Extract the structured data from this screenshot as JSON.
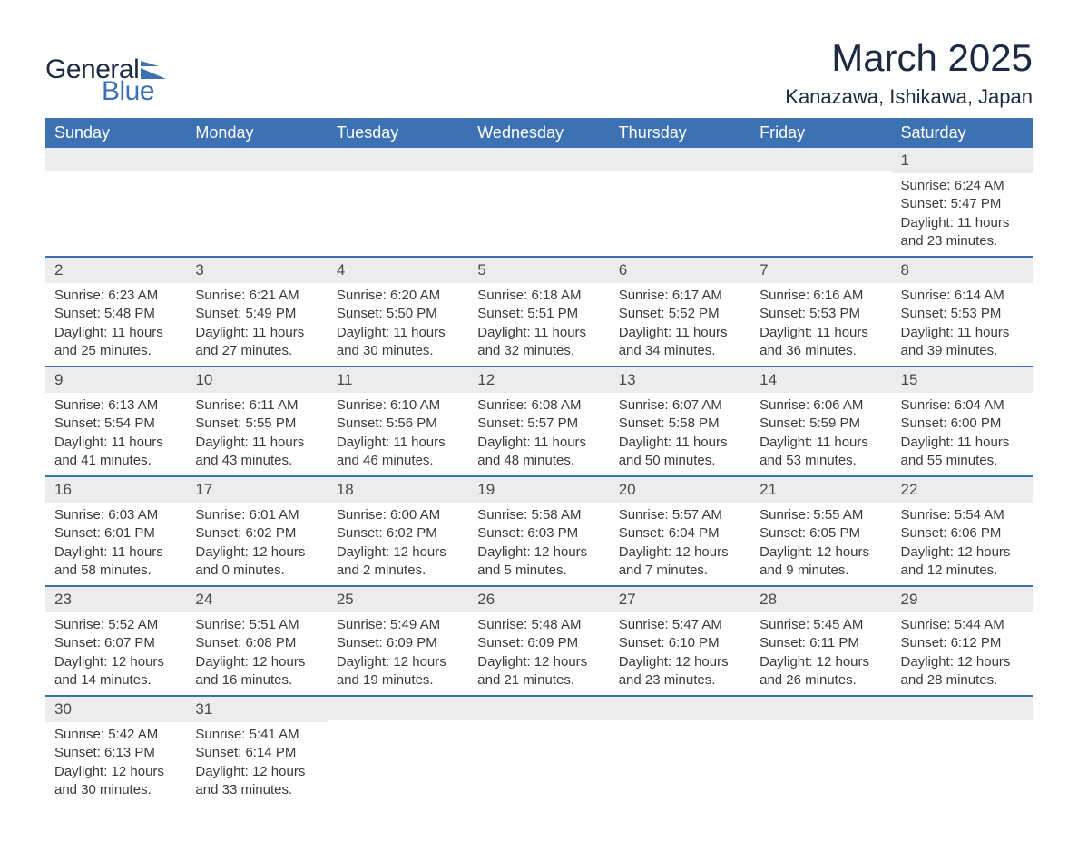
{
  "brand": {
    "word1": "General",
    "word2": "Blue",
    "flag_color": "#3c72b4",
    "text_dark": "#1c2b42"
  },
  "title": "March 2025",
  "location": "Kanazawa, Ishikawa, Japan",
  "calendar": {
    "header_bg": "#3c72b4",
    "header_text": "#ffffff",
    "daynum_bg": "#ececec",
    "row_border": "#3c72b4",
    "text_color": "#3a3a3a",
    "days_of_week": [
      "Sunday",
      "Monday",
      "Tuesday",
      "Wednesday",
      "Thursday",
      "Friday",
      "Saturday"
    ],
    "weeks": [
      [
        {
          "n": "",
          "sunrise": "",
          "sunset": "",
          "daylight": ""
        },
        {
          "n": "",
          "sunrise": "",
          "sunset": "",
          "daylight": ""
        },
        {
          "n": "",
          "sunrise": "",
          "sunset": "",
          "daylight": ""
        },
        {
          "n": "",
          "sunrise": "",
          "sunset": "",
          "daylight": ""
        },
        {
          "n": "",
          "sunrise": "",
          "sunset": "",
          "daylight": ""
        },
        {
          "n": "",
          "sunrise": "",
          "sunset": "",
          "daylight": ""
        },
        {
          "n": "1",
          "sunrise": "Sunrise: 6:24 AM",
          "sunset": "Sunset: 5:47 PM",
          "daylight": "Daylight: 11 hours and 23 minutes."
        }
      ],
      [
        {
          "n": "2",
          "sunrise": "Sunrise: 6:23 AM",
          "sunset": "Sunset: 5:48 PM",
          "daylight": "Daylight: 11 hours and 25 minutes."
        },
        {
          "n": "3",
          "sunrise": "Sunrise: 6:21 AM",
          "sunset": "Sunset: 5:49 PM",
          "daylight": "Daylight: 11 hours and 27 minutes."
        },
        {
          "n": "4",
          "sunrise": "Sunrise: 6:20 AM",
          "sunset": "Sunset: 5:50 PM",
          "daylight": "Daylight: 11 hours and 30 minutes."
        },
        {
          "n": "5",
          "sunrise": "Sunrise: 6:18 AM",
          "sunset": "Sunset: 5:51 PM",
          "daylight": "Daylight: 11 hours and 32 minutes."
        },
        {
          "n": "6",
          "sunrise": "Sunrise: 6:17 AM",
          "sunset": "Sunset: 5:52 PM",
          "daylight": "Daylight: 11 hours and 34 minutes."
        },
        {
          "n": "7",
          "sunrise": "Sunrise: 6:16 AM",
          "sunset": "Sunset: 5:53 PM",
          "daylight": "Daylight: 11 hours and 36 minutes."
        },
        {
          "n": "8",
          "sunrise": "Sunrise: 6:14 AM",
          "sunset": "Sunset: 5:53 PM",
          "daylight": "Daylight: 11 hours and 39 minutes."
        }
      ],
      [
        {
          "n": "9",
          "sunrise": "Sunrise: 6:13 AM",
          "sunset": "Sunset: 5:54 PM",
          "daylight": "Daylight: 11 hours and 41 minutes."
        },
        {
          "n": "10",
          "sunrise": "Sunrise: 6:11 AM",
          "sunset": "Sunset: 5:55 PM",
          "daylight": "Daylight: 11 hours and 43 minutes."
        },
        {
          "n": "11",
          "sunrise": "Sunrise: 6:10 AM",
          "sunset": "Sunset: 5:56 PM",
          "daylight": "Daylight: 11 hours and 46 minutes."
        },
        {
          "n": "12",
          "sunrise": "Sunrise: 6:08 AM",
          "sunset": "Sunset: 5:57 PM",
          "daylight": "Daylight: 11 hours and 48 minutes."
        },
        {
          "n": "13",
          "sunrise": "Sunrise: 6:07 AM",
          "sunset": "Sunset: 5:58 PM",
          "daylight": "Daylight: 11 hours and 50 minutes."
        },
        {
          "n": "14",
          "sunrise": "Sunrise: 6:06 AM",
          "sunset": "Sunset: 5:59 PM",
          "daylight": "Daylight: 11 hours and 53 minutes."
        },
        {
          "n": "15",
          "sunrise": "Sunrise: 6:04 AM",
          "sunset": "Sunset: 6:00 PM",
          "daylight": "Daylight: 11 hours and 55 minutes."
        }
      ],
      [
        {
          "n": "16",
          "sunrise": "Sunrise: 6:03 AM",
          "sunset": "Sunset: 6:01 PM",
          "daylight": "Daylight: 11 hours and 58 minutes."
        },
        {
          "n": "17",
          "sunrise": "Sunrise: 6:01 AM",
          "sunset": "Sunset: 6:02 PM",
          "daylight": "Daylight: 12 hours and 0 minutes."
        },
        {
          "n": "18",
          "sunrise": "Sunrise: 6:00 AM",
          "sunset": "Sunset: 6:02 PM",
          "daylight": "Daylight: 12 hours and 2 minutes."
        },
        {
          "n": "19",
          "sunrise": "Sunrise: 5:58 AM",
          "sunset": "Sunset: 6:03 PM",
          "daylight": "Daylight: 12 hours and 5 minutes."
        },
        {
          "n": "20",
          "sunrise": "Sunrise: 5:57 AM",
          "sunset": "Sunset: 6:04 PM",
          "daylight": "Daylight: 12 hours and 7 minutes."
        },
        {
          "n": "21",
          "sunrise": "Sunrise: 5:55 AM",
          "sunset": "Sunset: 6:05 PM",
          "daylight": "Daylight: 12 hours and 9 minutes."
        },
        {
          "n": "22",
          "sunrise": "Sunrise: 5:54 AM",
          "sunset": "Sunset: 6:06 PM",
          "daylight": "Daylight: 12 hours and 12 minutes."
        }
      ],
      [
        {
          "n": "23",
          "sunrise": "Sunrise: 5:52 AM",
          "sunset": "Sunset: 6:07 PM",
          "daylight": "Daylight: 12 hours and 14 minutes."
        },
        {
          "n": "24",
          "sunrise": "Sunrise: 5:51 AM",
          "sunset": "Sunset: 6:08 PM",
          "daylight": "Daylight: 12 hours and 16 minutes."
        },
        {
          "n": "25",
          "sunrise": "Sunrise: 5:49 AM",
          "sunset": "Sunset: 6:09 PM",
          "daylight": "Daylight: 12 hours and 19 minutes."
        },
        {
          "n": "26",
          "sunrise": "Sunrise: 5:48 AM",
          "sunset": "Sunset: 6:09 PM",
          "daylight": "Daylight: 12 hours and 21 minutes."
        },
        {
          "n": "27",
          "sunrise": "Sunrise: 5:47 AM",
          "sunset": "Sunset: 6:10 PM",
          "daylight": "Daylight: 12 hours and 23 minutes."
        },
        {
          "n": "28",
          "sunrise": "Sunrise: 5:45 AM",
          "sunset": "Sunset: 6:11 PM",
          "daylight": "Daylight: 12 hours and 26 minutes."
        },
        {
          "n": "29",
          "sunrise": "Sunrise: 5:44 AM",
          "sunset": "Sunset: 6:12 PM",
          "daylight": "Daylight: 12 hours and 28 minutes."
        }
      ],
      [
        {
          "n": "30",
          "sunrise": "Sunrise: 5:42 AM",
          "sunset": "Sunset: 6:13 PM",
          "daylight": "Daylight: 12 hours and 30 minutes."
        },
        {
          "n": "31",
          "sunrise": "Sunrise: 5:41 AM",
          "sunset": "Sunset: 6:14 PM",
          "daylight": "Daylight: 12 hours and 33 minutes."
        },
        {
          "n": "",
          "sunrise": "",
          "sunset": "",
          "daylight": ""
        },
        {
          "n": "",
          "sunrise": "",
          "sunset": "",
          "daylight": ""
        },
        {
          "n": "",
          "sunrise": "",
          "sunset": "",
          "daylight": ""
        },
        {
          "n": "",
          "sunrise": "",
          "sunset": "",
          "daylight": ""
        },
        {
          "n": "",
          "sunrise": "",
          "sunset": "",
          "daylight": ""
        }
      ]
    ]
  }
}
